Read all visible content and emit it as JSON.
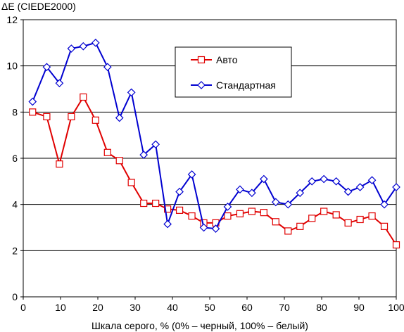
{
  "chart_data": {
    "type": "line",
    "title": "",
    "ylabel": "ΔE (CIEDE2000)",
    "xlabel": "Шкала серого, % (0% – черный, 100% – белый)",
    "xlim": [
      0,
      100
    ],
    "ylim": [
      0,
      12
    ],
    "xticks": [
      0,
      10,
      20,
      30,
      40,
      50,
      60,
      70,
      80,
      90,
      100
    ],
    "yticks": [
      0,
      2,
      4,
      6,
      8,
      10,
      12
    ],
    "grid": "horizontal",
    "legend_position": "upper-right",
    "series": [
      {
        "name": "Авто",
        "color": "#e00000",
        "marker": "square",
        "x": [
          2.5,
          6.3,
          9.7,
          12.9,
          16.1,
          19.4,
          22.6,
          25.8,
          29.0,
          32.3,
          35.5,
          38.7,
          41.9,
          45.2,
          48.4,
          51.6,
          54.8,
          58.1,
          61.3,
          64.5,
          67.7,
          71.0,
          74.2,
          77.4,
          80.6,
          83.9,
          87.1,
          90.3,
          93.5,
          96.8,
          100
        ],
        "values": [
          8.0,
          7.8,
          5.75,
          7.8,
          8.65,
          7.65,
          6.25,
          5.9,
          4.95,
          4.05,
          4.05,
          3.8,
          3.75,
          3.5,
          3.2,
          3.2,
          3.5,
          3.6,
          3.7,
          3.65,
          3.25,
          2.85,
          3.05,
          3.4,
          3.7,
          3.55,
          3.2,
          3.35,
          3.5,
          3.05,
          2.25
        ]
      },
      {
        "name": "Стандартная",
        "color": "#0000d0",
        "marker": "diamond",
        "x": [
          2.5,
          6.3,
          9.7,
          12.9,
          16.1,
          19.4,
          22.6,
          25.8,
          29.0,
          32.3,
          35.5,
          38.7,
          41.9,
          45.2,
          48.4,
          51.6,
          54.8,
          58.1,
          61.3,
          64.5,
          67.7,
          71.0,
          74.2,
          77.4,
          80.6,
          83.9,
          87.1,
          90.3,
          93.5,
          96.8,
          100
        ],
        "values": [
          8.45,
          9.95,
          9.25,
          10.75,
          10.85,
          11.0,
          9.95,
          7.75,
          8.85,
          6.15,
          6.6,
          3.15,
          4.55,
          5.3,
          3.0,
          2.95,
          3.9,
          4.65,
          4.5,
          5.1,
          4.1,
          4.0,
          4.5,
          5.0,
          5.1,
          5.0,
          4.55,
          4.75,
          5.05,
          4.0,
          4.75
        ]
      }
    ]
  }
}
